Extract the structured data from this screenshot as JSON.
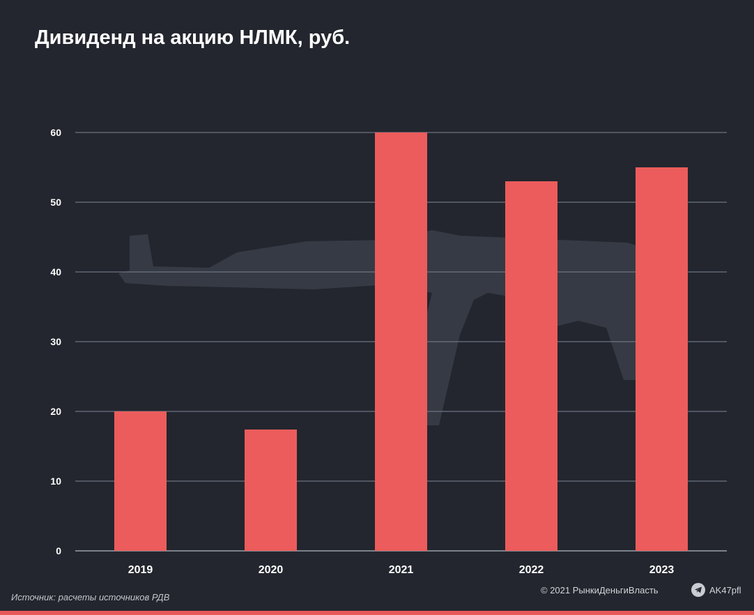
{
  "header": {
    "title": "Дивиденд на акцию НЛМК, руб."
  },
  "footer": {
    "source": "Источник: расчеты источников РДВ",
    "copyright": "© 2021  РынкиДеньгиВласть",
    "channel": "AK47pfl"
  },
  "colors": {
    "background": "#23262e",
    "bar": "#ec5c5c",
    "grid": "#6c7482",
    "watermark": "#3a3e48",
    "accent_strip": "#e85a5a"
  },
  "icons": {
    "channel": "telegram-icon",
    "watermark": "rifle-silhouette"
  },
  "chart_data": {
    "type": "bar",
    "title": "Дивиденд на акцию НЛМК, руб.",
    "xlabel": "",
    "ylabel": "",
    "categories": [
      "2019",
      "2020",
      "2021",
      "2022",
      "2023"
    ],
    "values": [
      20,
      17.4,
      60,
      53,
      55
    ],
    "ylim": [
      0,
      60
    ],
    "yticks": [
      0,
      10,
      20,
      30,
      40,
      50,
      60
    ],
    "grid": true,
    "legend": "none"
  }
}
